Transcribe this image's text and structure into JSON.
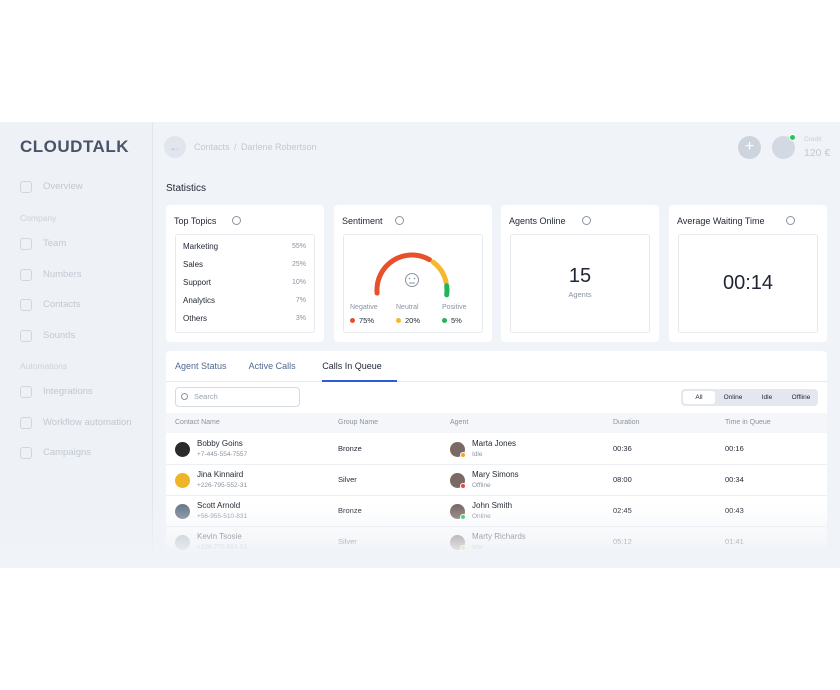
{
  "logo": "CLOUDTALK",
  "sidebar": {
    "overview": "Overview",
    "sections": [
      {
        "title": "Company",
        "items": [
          "Team",
          "Numbers",
          "Contacts",
          "Sounds"
        ]
      },
      {
        "title": "Automations",
        "items": [
          "Integrations",
          "Workflow automation",
          "Campaigns"
        ]
      }
    ]
  },
  "header": {
    "breadcrumb": [
      "Contacts",
      "Darlene Robertson"
    ],
    "separator": "/",
    "credit_label": "Credit",
    "credit": "120 €"
  },
  "statistics": {
    "title": "Statistics",
    "top_topics": {
      "title": "Top Topics",
      "rows": [
        [
          "Marketing",
          "55%"
        ],
        [
          "Sales",
          "25%"
        ],
        [
          "Support",
          "10%"
        ],
        [
          "Analytics",
          "7%"
        ],
        [
          "Others",
          "3%"
        ]
      ]
    },
    "sentiment": {
      "title": "Sentiment",
      "items": [
        {
          "label": "Negative",
          "value": "75%",
          "color": "#e8502a"
        },
        {
          "label": "Neutral",
          "value": "20%",
          "color": "#f5b82e"
        },
        {
          "label": "Positive",
          "value": "5%",
          "color": "#22b45a"
        }
      ]
    },
    "agents_online": {
      "title": "Agents Online",
      "value": "15",
      "caption": "Agents"
    },
    "avg_wait": {
      "title": "Average Waiting Time",
      "value": "00:14"
    }
  },
  "queue": {
    "tabs": [
      "Agent Status",
      "Active Calls",
      "Calls In Queue"
    ],
    "active_tab": 2,
    "search_placeholder": "Search",
    "filters": [
      "All",
      "Online",
      "Idle",
      "Offline"
    ],
    "active_filter": 0,
    "columns": [
      "Contact Name",
      "Group Name",
      "Agent",
      "Duration",
      "Time in Queue"
    ],
    "rows": [
      {
        "contact": "Bobby Goins",
        "phone": "+7-445-554-7557",
        "group": "Bronze",
        "agent": "Marta Jones",
        "status": "Idle",
        "duration": "00:36",
        "time_in_queue": "00:16"
      },
      {
        "contact": "Jina Kinnaird",
        "phone": "+226-795-552-31",
        "group": "Silver",
        "agent": "Mary Simons",
        "status": "Offline",
        "duration": "08:00",
        "time_in_queue": "00:34"
      },
      {
        "contact": "Scott Arnold",
        "phone": "+56-955-510-831",
        "group": "Bronze",
        "agent": "John Smith",
        "status": "Online",
        "duration": "02:45",
        "time_in_queue": "00:43"
      },
      {
        "contact": "Kevin Tsosie",
        "phone": "+226-775-553-53",
        "group": "Silver",
        "agent": "Marty Richards",
        "status": "Idle",
        "duration": "05:12",
        "time_in_queue": "01:41"
      }
    ]
  }
}
